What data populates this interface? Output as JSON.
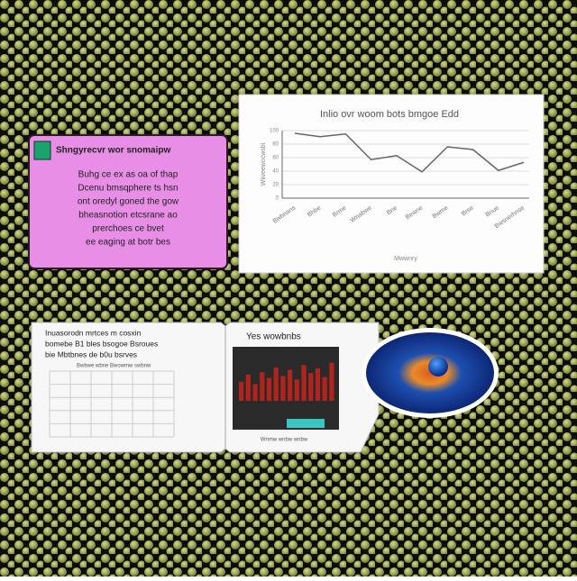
{
  "note_card": {
    "title": "Shngyrecvr wor snomaipw",
    "lines": [
      "Buhg ce ex as oa of thap",
      "Dcenu bmsqphere ts hsn",
      "ont oredyl goned the gow",
      "bheasnotion etcsrane ao",
      "prerchoes ce bvet",
      "ee eaging at botr bes"
    ]
  },
  "line_chart": {
    "title": "Inlio ovr woom bots bmgoe Edd",
    "y_label": "Wiiveewocwsbi",
    "x_label": "Mwwnry",
    "categories": [
      "Bwbnans",
      "Bhbe",
      "Brme",
      "Wnabwe",
      "Bne",
      "Bewne",
      "Bwme",
      "Brse",
      "Bnue",
      "Bwsnerhnse"
    ],
    "values": [
      96,
      91,
      95,
      57,
      63,
      39,
      76,
      72,
      41,
      53
    ],
    "ylim": [
      0,
      100
    ],
    "yticks": [
      0,
      20,
      40,
      60,
      80,
      100
    ],
    "color": "#666666"
  },
  "book": {
    "left_lines": [
      "Inuasorodn mrtces m cosxin",
      "bomebe B1 bles bsogoe Bsroues",
      "bie Mbtbnes de b0u bsrves"
    ],
    "left_caption": "Bwbwe wbne Bwowmw swbnw",
    "right_title": "Yes wowbnbs",
    "right_caption": "Wnmw wnbw wnbw",
    "bars": [
      40,
      55,
      35,
      60,
      48,
      70,
      52,
      65,
      45,
      75,
      58,
      68,
      50,
      80
    ],
    "bars_ylim": [
      0,
      100
    ],
    "bars_color": "#b0241e"
  }
}
